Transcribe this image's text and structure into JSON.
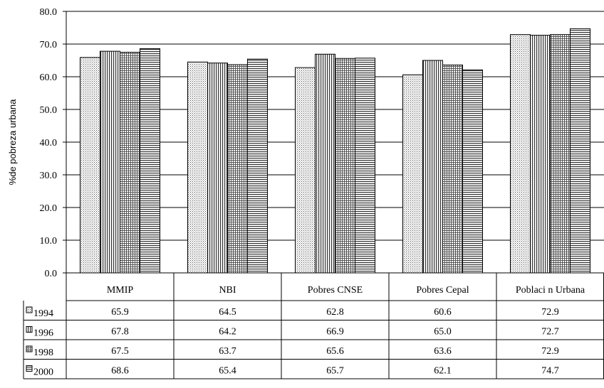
{
  "chart_data": {
    "type": "bar",
    "ylabel": "%de pobreza urbana",
    "ylim": [
      0,
      80
    ],
    "yticks": [
      "0.0",
      "10.0",
      "20.0",
      "30.0",
      "40.0",
      "50.0",
      "60.0",
      "70.0",
      "80.0"
    ],
    "grid": true,
    "categories": [
      "MMIP",
      "NBI",
      "Pobres CNSE",
      "Pobres Cepal",
      "Poblaci n Urbana"
    ],
    "series": [
      {
        "name": "1994",
        "pattern": "dots",
        "values": [
          65.9,
          64.5,
          62.8,
          60.6,
          72.9
        ],
        "labels": [
          "65.9",
          "64.5",
          "62.8",
          "60.6",
          "72.9"
        ]
      },
      {
        "name": "1996",
        "pattern": "vlines",
        "values": [
          67.8,
          64.2,
          66.9,
          65.0,
          72.7
        ],
        "labels": [
          "67.8",
          "64.2",
          "66.9",
          "65.0",
          "72.7"
        ]
      },
      {
        "name": "1998",
        "pattern": "cross",
        "values": [
          67.5,
          63.7,
          65.6,
          63.6,
          72.9
        ],
        "labels": [
          "67.5",
          "63.7",
          "65.6",
          "63.6",
          "72.9"
        ]
      },
      {
        "name": "2000",
        "pattern": "hlines",
        "values": [
          68.6,
          65.4,
          65.7,
          62.1,
          74.7
        ],
        "labels": [
          "68.6",
          "65.4",
          "65.7",
          "62.1",
          "74.7"
        ]
      }
    ]
  }
}
